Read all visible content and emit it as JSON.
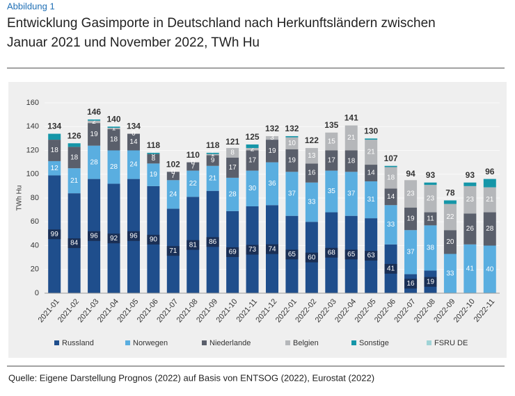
{
  "chart_data": {
    "type": "stacked_bar",
    "figure_label": "Abbildung 1",
    "title": "Entwicklung Gasimporte in Deutschland nach Herkunftsländern zwischen",
    "title_line2": "Januar 2021 und November 2022, TWh Hu",
    "ylabel": "TWh Hu",
    "source": "Quelle: Eigene Darstellung Prognos (2022) auf Basis von ENTSOG (2022), Eurostat (2022)",
    "categories": [
      "2021-01",
      "2021-02",
      "2021-03",
      "2021-04",
      "2021-05",
      "2021-06",
      "2021-07",
      "2021-08",
      "2021-09",
      "2021-10",
      "2021-11",
      "2021-12",
      "2022-01",
      "2022-02",
      "2022-03",
      "2022-04",
      "2022-05",
      "2022-06",
      "2022-07",
      "2022-08",
      "2022-09",
      "2022-10",
      "2022-11"
    ],
    "series": [
      {
        "name": "Russland",
        "color": "#1f4e8c",
        "labels": true,
        "values": [
          99,
          84,
          96,
          92,
          96,
          90,
          71,
          81,
          86,
          69,
          73,
          74,
          65,
          60,
          68,
          65,
          63,
          41,
          16,
          19,
          null,
          null,
          null
        ]
      },
      {
        "name": "Norwegen",
        "color": "#5aaee0",
        "labels": true,
        "values": [
          12,
          21,
          28,
          28,
          24,
          19,
          24,
          22,
          21,
          28,
          30,
          36,
          37,
          33,
          35,
          37,
          31,
          33,
          37,
          38,
          33,
          41,
          40
        ]
      },
      {
        "name": "Niederlande",
        "color": "#5a5f6b",
        "labels": true,
        "values": [
          18,
          18,
          19,
          18,
          14,
          8,
          7,
          7,
          9,
          17,
          17,
          19,
          19,
          16,
          17,
          18,
          14,
          14,
          19,
          11,
          20,
          26,
          28
        ]
      },
      {
        "name": "Belgien",
        "color": "#b5b7ba",
        "labels": true,
        "values": [
          null,
          null,
          2,
          1,
          0,
          0,
          0,
          0,
          1,
          8,
          2,
          3,
          10,
          13,
          15,
          21,
          21,
          18,
          23,
          23,
          22,
          23,
          21
        ]
      },
      {
        "name": "Sonstige",
        "color": "#1596a8",
        "labels": false,
        "values": [
          5,
          3,
          1,
          1,
          0,
          1,
          0,
          0,
          1,
          0,
          3,
          0,
          1,
          0,
          0,
          0,
          1,
          1,
          0,
          2,
          3,
          3,
          7
        ]
      },
      {
        "name": "FSRU DE",
        "color": "#9fd3d6",
        "labels": false,
        "values": [
          0,
          0,
          0,
          0,
          0,
          0,
          0,
          0,
          0,
          0,
          0,
          0,
          0,
          0,
          0,
          0,
          0,
          0,
          0,
          0,
          0,
          0,
          0
        ]
      }
    ],
    "totals": [
      134,
      126,
      146,
      140,
      134,
      118,
      102,
      110,
      118,
      121,
      125,
      132,
      132,
      122,
      135,
      141,
      130,
      107,
      94,
      93,
      78,
      93,
      96
    ],
    "ylim": [
      0,
      160
    ],
    "yticks": [
      0,
      20,
      40,
      60,
      80,
      100,
      120,
      140,
      160
    ],
    "grid": true,
    "legend": "bottom"
  }
}
